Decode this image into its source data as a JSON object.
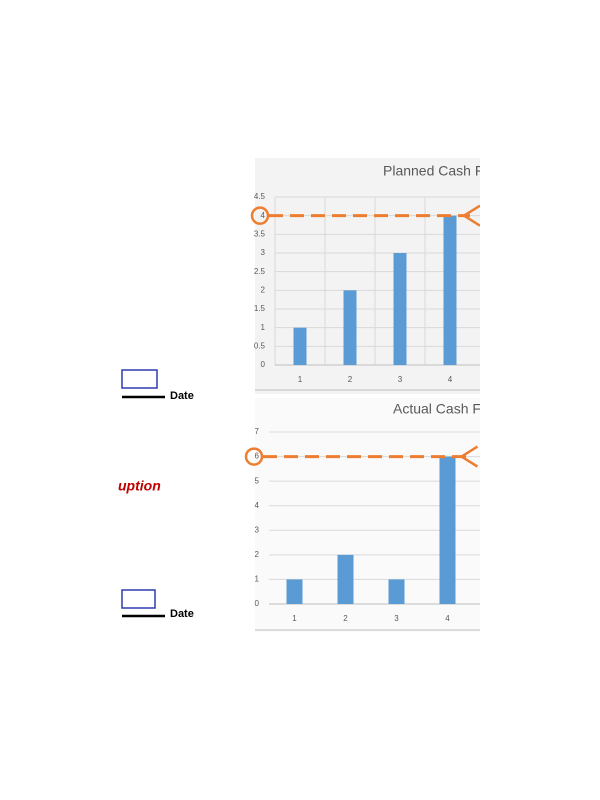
{
  "chart_data": [
    {
      "type": "bar",
      "title": "Planned Cash F",
      "categories": [
        "1",
        "2",
        "3",
        "4"
      ],
      "values": [
        1,
        2,
        3,
        4
      ],
      "color": "#5b9bd5",
      "ylim": [
        0,
        4.5
      ],
      "yticks": [
        0,
        0.5,
        1,
        1.5,
        2,
        2.5,
        3,
        3.5,
        4,
        4.5
      ],
      "grid": true
    },
    {
      "type": "bar",
      "title": "Actual Cash Fl",
      "categories": [
        "1",
        "2",
        "3",
        "4"
      ],
      "values": [
        1,
        2,
        1,
        6
      ],
      "color": "#5b9bd5",
      "ylim": [
        0,
        7
      ],
      "yticks": [
        0,
        1,
        2,
        3,
        4,
        5,
        6,
        7
      ],
      "grid": true
    }
  ],
  "side_texts": {
    "date_top": "Date",
    "red_note": "uption",
    "date_bottom": "Date"
  }
}
